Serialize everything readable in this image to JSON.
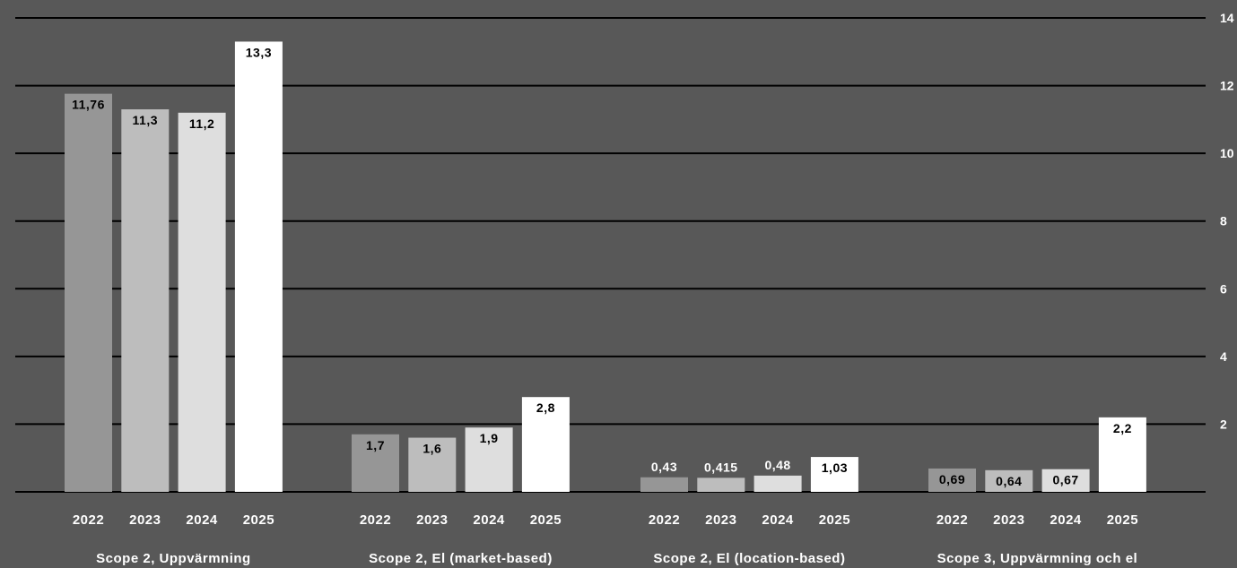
{
  "chart_data": {
    "type": "bar",
    "title": "",
    "xlabel": "",
    "ylabel": "",
    "ylim": [
      0,
      14
    ],
    "yticks": [
      "2",
      "4",
      "6",
      "8",
      "10",
      "12",
      "14"
    ],
    "grid": true,
    "years": [
      "2022",
      "2023",
      "2024",
      "2025"
    ],
    "colors": {
      "2022": "#969696",
      "2023": "#bdbdbd",
      "2024": "#dedede",
      "2025": "#ffffff"
    },
    "groups": [
      {
        "name": "Scope 2, Uppvärmning",
        "values": [
          11.76,
          11.3,
          11.2,
          13.3
        ],
        "labels": [
          "11,76",
          "11,3",
          "11,2",
          "13,3"
        ]
      },
      {
        "name": "Scope 2, El (market-based)",
        "values": [
          1.7,
          1.6,
          1.9,
          2.8
        ],
        "labels": [
          "1,7",
          "1,6",
          "1,9",
          "2,8"
        ]
      },
      {
        "name": "Scope 2, El (location-based)",
        "values": [
          0.43,
          0.415,
          0.48,
          1.03
        ],
        "labels": [
          "0,43",
          "0,415",
          "0,48",
          "1,03"
        ]
      },
      {
        "name": "Scope 3, Uppvärmning och el",
        "values": [
          0.69,
          0.64,
          0.67,
          2.2
        ],
        "labels": [
          "0,69",
          "0,64",
          "0,67",
          "2,2"
        ]
      }
    ]
  }
}
